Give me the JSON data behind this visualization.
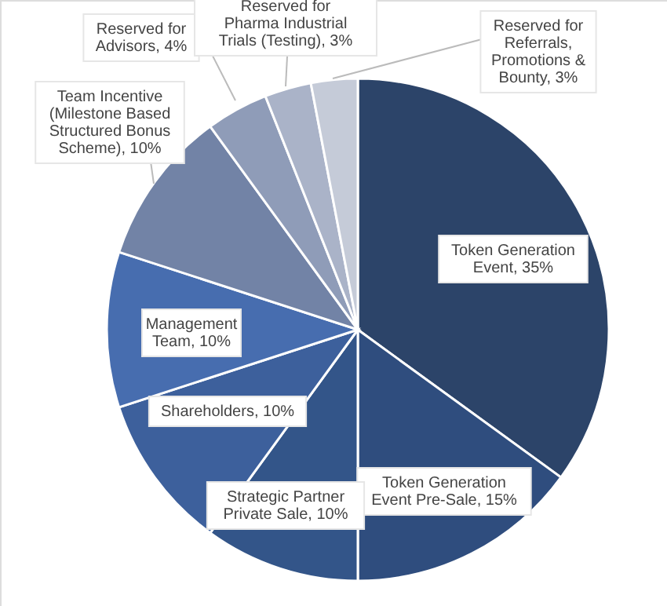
{
  "chart_data": {
    "type": "pie",
    "categories": [
      "Token Generation Event, 35%",
      "Token Generation Event Pre-Sale, 15%",
      "Strategic Partner Private Sale, 10%",
      "Shareholders, 10%",
      "Management Team, 10%",
      "Team Incentive (Milestone Based Structured Bonus Scheme), 10%",
      "Reserved for Advisors, 4%",
      "Reserved for Pharma Industrial Trials (Testing), 3%",
      "Reserved for Referrals, Promotions & Bounty, 3%"
    ],
    "values": [
      35,
      15,
      10,
      10,
      10,
      10,
      4,
      3,
      3
    ],
    "colors": [
      "#2c4469",
      "#2f4d7e",
      "#335589",
      "#3d609c",
      "#476daf",
      "#7283a6",
      "#8f9cb8",
      "#aab3c8",
      "#c5cbd8"
    ]
  }
}
